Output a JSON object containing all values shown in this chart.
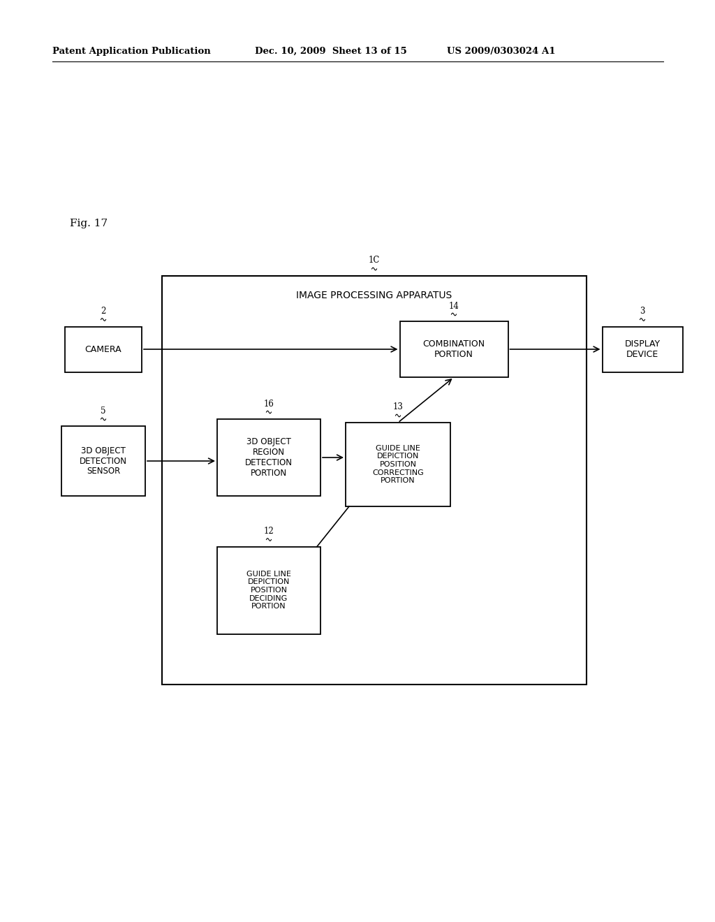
{
  "bg_color": "#ffffff",
  "header_left": "Patent Application Publication",
  "header_mid": "Dec. 10, 2009  Sheet 13 of 15",
  "header_right": "US 2009/0303024 A1",
  "fig_label": "Fig. 17",
  "outer_box_label": "IMAGE PROCESSING APPARATUS",
  "outer_box_id": "1C",
  "fig_w": 10.24,
  "fig_h": 13.2,
  "dpi": 100
}
